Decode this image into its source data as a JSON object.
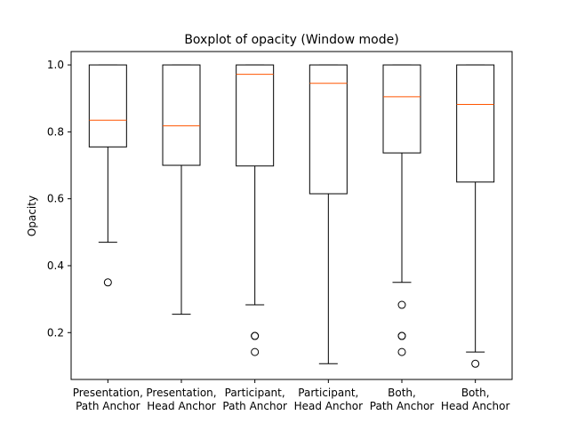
{
  "chart_data": {
    "type": "boxplot",
    "title": "Boxplot of opacity (Window mode)",
    "xlabel": "",
    "ylabel": "Opacity",
    "ylim": [
      0.06,
      1.04
    ],
    "yticks": [
      "0.2",
      "0.4",
      "0.6",
      "0.8",
      "1.0"
    ],
    "grid": false,
    "categories": [
      [
        "Presentation,",
        "Path Anchor"
      ],
      [
        "Presentation,",
        "Head Anchor"
      ],
      [
        "Participant,",
        "Path Anchor"
      ],
      [
        "Participant,",
        "Head Anchor"
      ],
      [
        "Both,",
        "Path Anchor"
      ],
      [
        "Both,",
        "Head Anchor"
      ]
    ],
    "boxes": [
      {
        "whislo": 0.47,
        "q1": 0.755,
        "med": 0.835,
        "q3": 1.0,
        "whishi": 1.0,
        "fliers": [
          0.35
        ]
      },
      {
        "whislo": 0.255,
        "q1": 0.7,
        "med": 0.818,
        "q3": 1.0,
        "whishi": 1.0,
        "fliers": []
      },
      {
        "whislo": 0.283,
        "q1": 0.698,
        "med": 0.972,
        "q3": 1.0,
        "whishi": 1.0,
        "fliers": [
          0.19,
          0.19,
          0.142
        ]
      },
      {
        "whislo": 0.107,
        "q1": 0.615,
        "med": 0.945,
        "q3": 1.0,
        "whishi": 1.0,
        "fliers": []
      },
      {
        "whislo": 0.35,
        "q1": 0.737,
        "med": 0.905,
        "q3": 1.0,
        "whishi": 1.0,
        "fliers": [
          0.283,
          0.19,
          0.19,
          0.142
        ]
      },
      {
        "whislo": 0.142,
        "q1": 0.65,
        "med": 0.882,
        "q3": 1.0,
        "whishi": 1.0,
        "fliers": [
          0.107
        ]
      }
    ],
    "colors": {
      "box": "#000000",
      "median": "#ff5500",
      "flier": "#000000"
    }
  }
}
